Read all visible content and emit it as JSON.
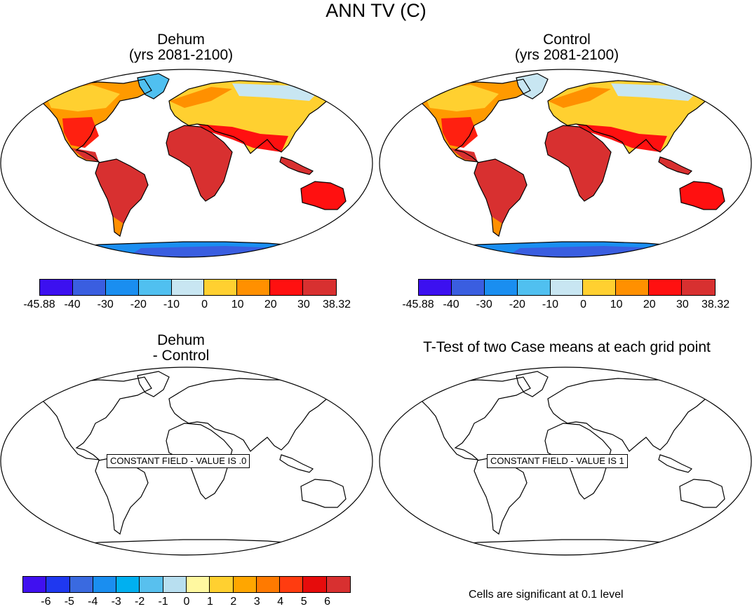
{
  "title": "ANN TV (C)",
  "panels": [
    {
      "title_line1": "Dehum",
      "title_line2": "(yrs 2081-2100)"
    },
    {
      "title_line1": "Control",
      "title_line2": "(yrs 2081-2100)"
    },
    {
      "title_line1": "Dehum",
      "title_line2": "- Control"
    },
    {
      "title_line1": "T-Test of two Case means at each grid point",
      "title_line2": ""
    }
  ],
  "colorbar_top": {
    "colors": [
      "#3c10f0",
      "#3a5ee0",
      "#1a8ef0",
      "#50c0f0",
      "#c8e6f2",
      "#ffd030",
      "#ff9000",
      "#ff1010",
      "#d83030"
    ],
    "labels": [
      "-45.88",
      "-40",
      "-30",
      "-20",
      "-10",
      "0",
      "10",
      "20",
      "30",
      "38.32"
    ]
  },
  "colorbar_diff": {
    "colors": [
      "#4010f0",
      "#1f38f0",
      "#3a6ae0",
      "#1a8ef0",
      "#00b0f0",
      "#58c0ee",
      "#b8dff0",
      "#fff8a0",
      "#ffd030",
      "#ffa600",
      "#ff7a00",
      "#ff3c10",
      "#e60c0c",
      "#d83030"
    ],
    "labels": [
      "-6",
      "-5",
      "-4",
      "-3",
      "-2",
      "-1",
      "0",
      "1",
      "2",
      "3",
      "4",
      "5",
      "6"
    ]
  },
  "constant_labels": {
    "diff": "CONSTANT FIELD - VALUE IS .0",
    "ttest": "CONSTANT FIELD - VALUE IS 1"
  },
  "significance_note": "Cells are significant at 0.1 level"
}
